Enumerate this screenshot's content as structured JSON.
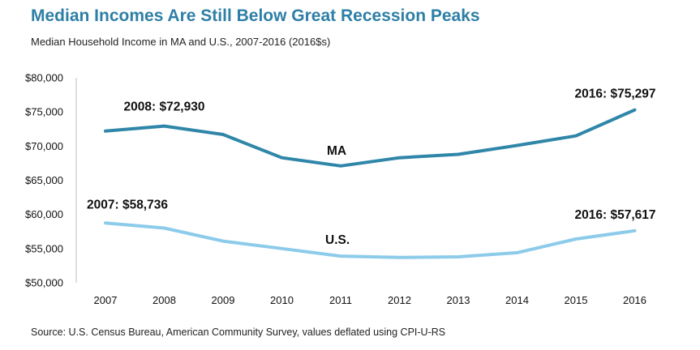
{
  "title": "Median Incomes Are Still Below Great Recession Peaks",
  "subtitle": "Median Household Income in MA and U.S., 2007-2016 (2016$s)",
  "source": "Source: U.S. Census Bureau, American Community Survey, values deflated using CPI-U-RS",
  "colors": {
    "ma": "#2f86a8",
    "us": "#8ccbea",
    "axis": "#bfbfbf",
    "title": "#2e7fa6"
  },
  "chart_data": {
    "type": "line",
    "x": [
      2007,
      2008,
      2009,
      2010,
      2011,
      2012,
      2013,
      2014,
      2015,
      2016
    ],
    "x_tick_labels": [
      "2007",
      "2008",
      "2009",
      "2010",
      "2011",
      "2012",
      "2013",
      "2014",
      "2015",
      "2016"
    ],
    "y_tick_values": [
      50000,
      55000,
      60000,
      65000,
      70000,
      75000,
      80000
    ],
    "y_tick_labels": [
      "$50,000",
      "$55,000",
      "$60,000",
      "$65,000",
      "$70,000",
      "$75,000",
      "$80,000"
    ],
    "ylim": [
      50000,
      80000
    ],
    "grid": false,
    "series": [
      {
        "name": "MA",
        "values": [
          72200,
          72930,
          71700,
          68300,
          67100,
          68300,
          68800,
          70100,
          71500,
          75297
        ]
      },
      {
        "name": "U.S.",
        "values": [
          58736,
          58000,
          56100,
          55000,
          53900,
          53700,
          53800,
          54400,
          56400,
          57617
        ]
      }
    ],
    "annotations": [
      {
        "text": "2008: $72,930",
        "series": 0,
        "index": 1
      },
      {
        "text": "2016: $75,297",
        "series": 0,
        "index": 9
      },
      {
        "text": "2007: $58,736",
        "series": 1,
        "index": 0
      },
      {
        "text": "2016: $57,617",
        "series": 1,
        "index": 9
      }
    ]
  }
}
